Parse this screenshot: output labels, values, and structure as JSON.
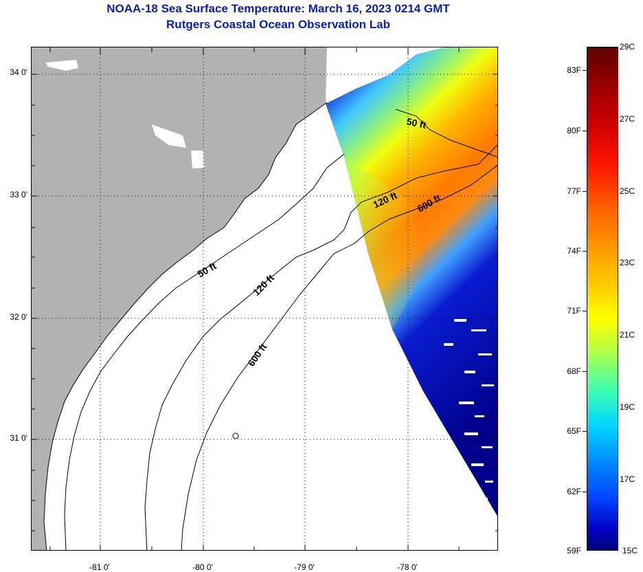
{
  "header": {
    "title_line1": "NOAA-18 Sea Surface Temperature:  March 16, 2023 0214 GMT",
    "title_line2": "Rutgers Coastal Ocean Observation Lab"
  },
  "map": {
    "latitude_labels": [
      "34 0'",
      "33 0'",
      "32 0'",
      "31 0'"
    ],
    "longitude_labels": [
      "-81 0'",
      "-80 0'",
      "-79 0'",
      "-78 0'"
    ],
    "contour_labels": {
      "isobath_50_north": "50 ft",
      "isobath_120_north": "120 ft",
      "isobath_600_north": "600 ft",
      "isobath_50_south": "50 ft",
      "isobath_120_south": "120 ft",
      "isobath_600_south": "600 ft"
    },
    "colors": {
      "land": "#b2b2b2",
      "no_data": "#ffffff",
      "cold": "#0000c8",
      "warm": "#ff7000"
    }
  },
  "colorbar": {
    "fahrenheit_labels": [
      "83F",
      "80F",
      "77F",
      "74F",
      "71F",
      "68F",
      "65F",
      "62F",
      "59F"
    ],
    "celsius_labels": [
      "29C",
      "27C",
      "25C",
      "23C",
      "21C",
      "19C",
      "17C",
      "15C"
    ]
  }
}
